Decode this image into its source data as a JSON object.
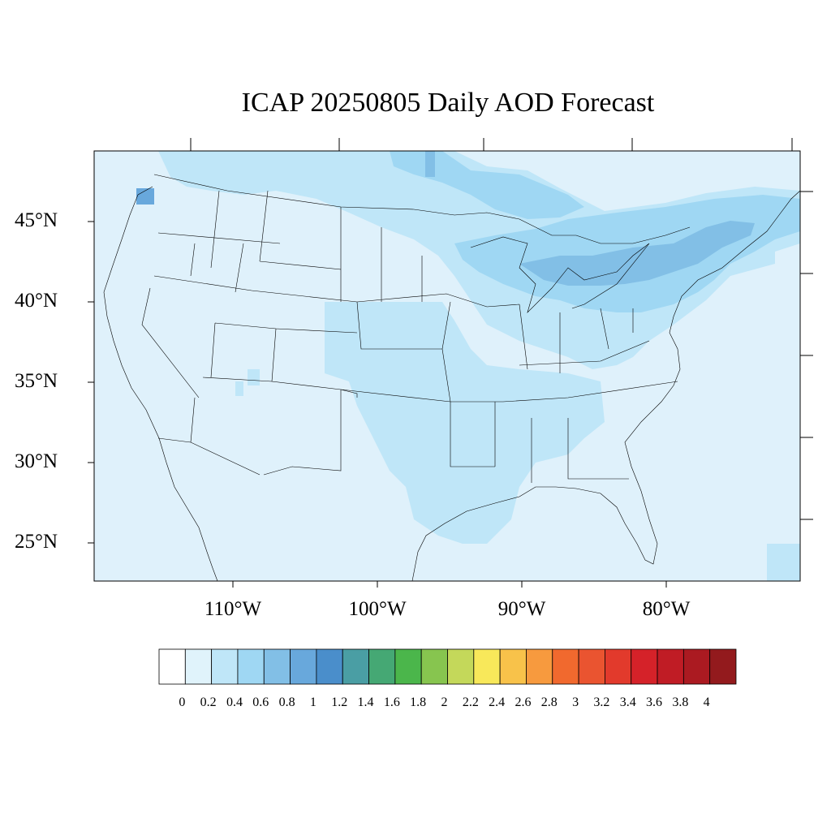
{
  "title": "ICAP 20250805 Daily AOD Forecast",
  "map": {
    "lat_labels": [
      "45°N",
      "40°N",
      "35°N",
      "30°N",
      "25°N"
    ],
    "lon_labels": [
      "110°W",
      "100°W",
      "90°W",
      "80°W"
    ],
    "background_color": "#dff1fb"
  },
  "colorbar": {
    "labels": [
      "0",
      "0.2",
      "0.4",
      "0.6",
      "0.8",
      "1",
      "1.2",
      "1.4",
      "1.6",
      "1.8",
      "2",
      "2.2",
      "2.4",
      "2.6",
      "2.8",
      "3",
      "3.2",
      "3.4",
      "3.6",
      "3.8",
      "4"
    ],
    "colors": [
      "#ffffff",
      "#e0f3fb",
      "#bfe6f8",
      "#9fd7f3",
      "#82bfe6",
      "#68a8dc",
      "#4a8ecb",
      "#4a9ea4",
      "#45a874",
      "#4bb64b",
      "#87c54f",
      "#c4d85a",
      "#f8e85a",
      "#f8c24a",
      "#f79a3e",
      "#f1692e",
      "#ea5430",
      "#e23a2c",
      "#d52229",
      "#c01c25",
      "#ab1a21",
      "#931a1d"
    ]
  }
}
